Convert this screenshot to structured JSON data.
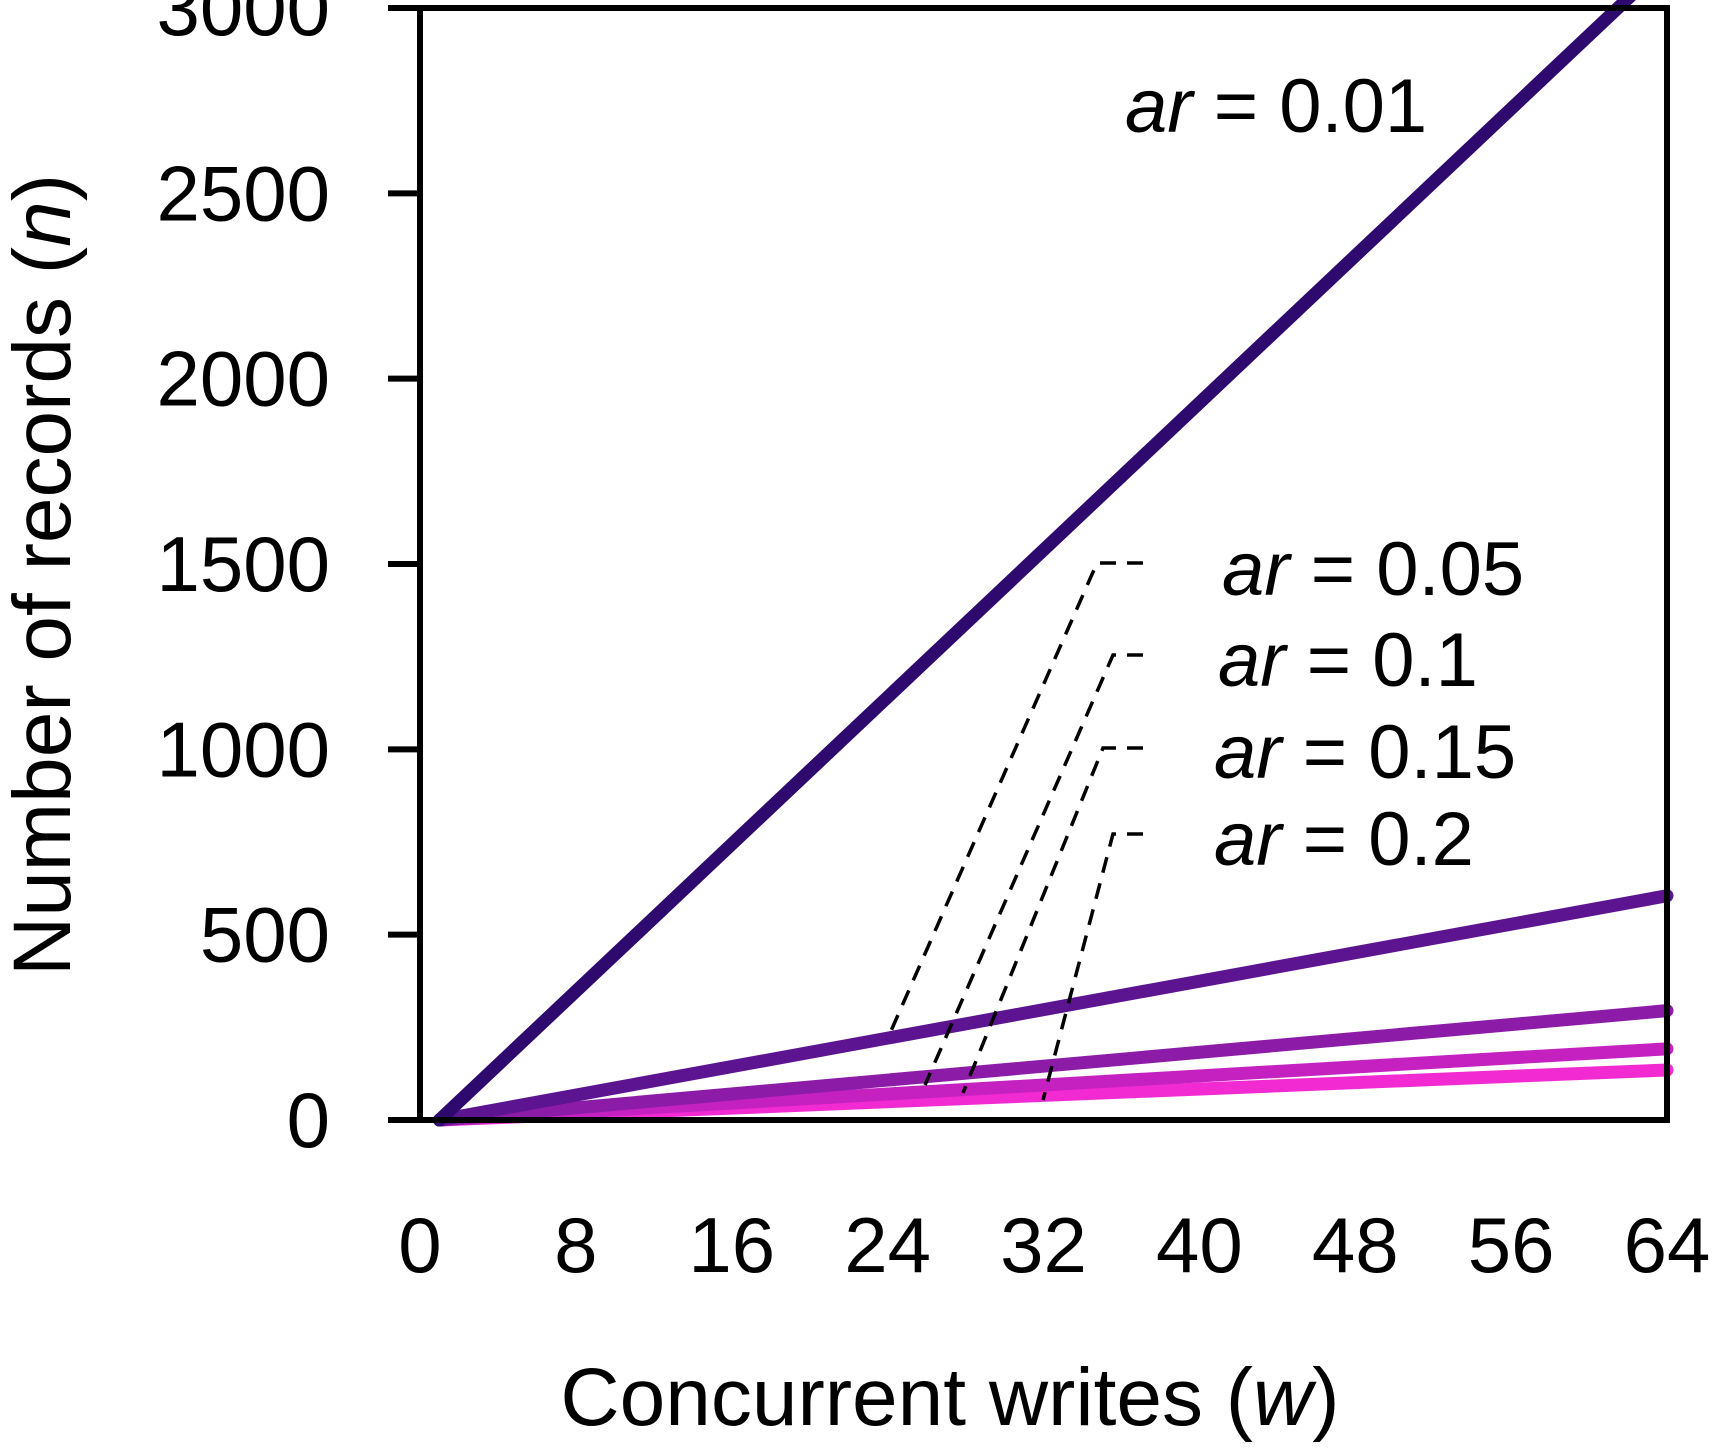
{
  "chart_data": {
    "type": "line",
    "title": "",
    "xlabel": {
      "prefix": "Concurrent writes (",
      "var": "w",
      "suffix": ")"
    },
    "ylabel": {
      "prefix": "Number of records (",
      "var": "n",
      "suffix": ")"
    },
    "xlim": [
      0,
      64
    ],
    "ylim": [
      0,
      3000
    ],
    "xticks": [
      0,
      8,
      16,
      24,
      32,
      40,
      48,
      56,
      64
    ],
    "yticks": [
      0,
      500,
      1000,
      1500,
      2000,
      2500,
      3000
    ],
    "grid": false,
    "series": [
      {
        "label_var": "ar",
        "label_rest": " = 0.01",
        "color": "#2e0a6e",
        "x": [
          1,
          64
        ],
        "y": [
          0,
          3125
        ]
      },
      {
        "label_var": "ar",
        "label_rest": " = 0.05",
        "color": "#5c1490",
        "x": [
          1,
          64
        ],
        "y": [
          0,
          605
        ]
      },
      {
        "label_var": "ar",
        "label_rest": " = 0.1",
        "color": "#8c1ca8",
        "x": [
          1,
          64
        ],
        "y": [
          0,
          295
        ]
      },
      {
        "label_var": "ar",
        "label_rest": " = 0.15",
        "color": "#c421c0",
        "x": [
          1,
          64
        ],
        "y": [
          0,
          192
        ]
      },
      {
        "label_var": "ar",
        "label_rest": " = 0.2",
        "color": "#f22ad2",
        "x": [
          1,
          64
        ],
        "y": [
          0,
          135
        ]
      }
    ]
  }
}
